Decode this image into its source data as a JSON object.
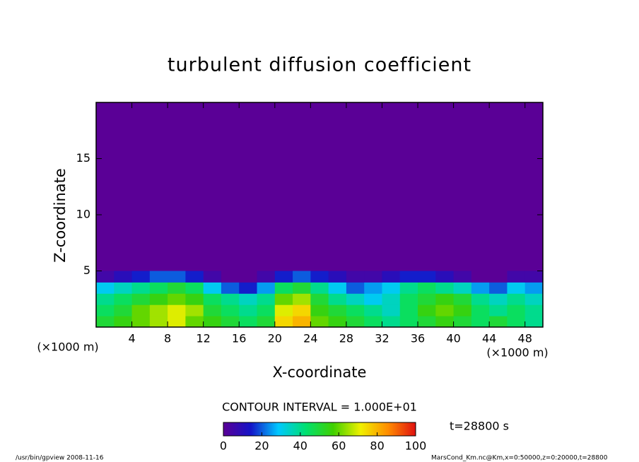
{
  "chart_data": {
    "type": "contour",
    "title": "turbulent diffusion coefficient",
    "x_label": "X-coordinate",
    "y_label": "Z-coordinate",
    "x_unit": "(×1000 m)",
    "y_unit": "(×1000 m)",
    "xlim": [
      0,
      50
    ],
    "ylim": [
      0,
      20
    ],
    "xticks": [
      4,
      8,
      12,
      16,
      20,
      24,
      28,
      32,
      36,
      40,
      44,
      48
    ],
    "yticks": [
      5,
      10,
      15
    ],
    "x": [
      1,
      3,
      5,
      7,
      9,
      11,
      13,
      15,
      17,
      19,
      21,
      23,
      25,
      27,
      29,
      31,
      33,
      35,
      37,
      39,
      41,
      43,
      45,
      47,
      49
    ],
    "y": [
      0.5,
      1.5,
      2.5,
      3.5,
      4.5
    ],
    "values": [
      [
        50,
        55,
        60,
        65,
        70,
        60,
        55,
        50,
        45,
        50,
        75,
        80,
        60,
        55,
        50,
        45,
        40,
        45,
        50,
        55,
        50,
        45,
        50,
        45,
        40
      ],
      [
        45,
        50,
        60,
        65,
        70,
        65,
        50,
        45,
        40,
        45,
        70,
        75,
        55,
        50,
        45,
        40,
        35,
        45,
        55,
        60,
        55,
        45,
        40,
        45,
        40
      ],
      [
        40,
        45,
        50,
        55,
        60,
        55,
        45,
        40,
        35,
        40,
        60,
        65,
        50,
        40,
        35,
        30,
        35,
        45,
        50,
        55,
        50,
        40,
        35,
        40,
        35
      ],
      [
        30,
        35,
        40,
        45,
        50,
        45,
        30,
        20,
        15,
        25,
        45,
        50,
        40,
        30,
        20,
        25,
        30,
        40,
        45,
        40,
        35,
        25,
        20,
        30,
        25
      ],
      [
        5,
        10,
        15,
        20,
        20,
        15,
        5,
        0,
        0,
        5,
        15,
        20,
        15,
        10,
        5,
        5,
        10,
        15,
        15,
        10,
        5,
        0,
        0,
        5,
        5
      ]
    ],
    "colormap": [
      "#5a0096",
      "#1414c8",
      "#00c8ff",
      "#00e070",
      "#40d000",
      "#f0f000",
      "#ff8c00",
      "#e01010"
    ],
    "clim": [
      0,
      100
    ],
    "cticks": [
      0,
      20,
      40,
      60,
      80,
      100
    ],
    "contour_interval": "CONTOUR INTERVAL = 1.000E+01",
    "time_label": "t=28800 s",
    "footer_left": "/usr/bin/gpview  2008-11-16",
    "footer_right": "MarsCond_Km.nc@Km,x=0:50000,z=0:20000,t=28800"
  }
}
